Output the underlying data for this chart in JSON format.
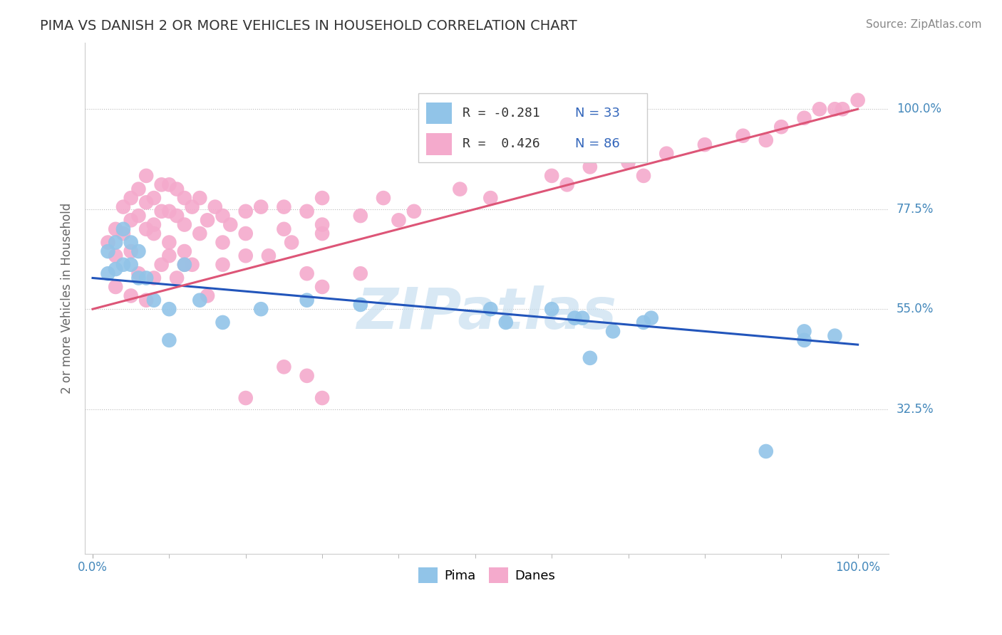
{
  "title": "PIMA VS DANISH 2 OR MORE VEHICLES IN HOUSEHOLD CORRELATION CHART",
  "source": "Source: ZipAtlas.com",
  "ylabel": "2 or more Vehicles in Household",
  "ytick_labels": [
    "100.0%",
    "77.5%",
    "55.0%",
    "32.5%"
  ],
  "ytick_positions": [
    1.0,
    0.775,
    0.55,
    0.325
  ],
  "xlim": [
    0.0,
    1.0
  ],
  "ylim": [
    0.0,
    1.15
  ],
  "pima_color": "#91C4E8",
  "danes_color": "#F4AACC",
  "pima_line_color": "#2255BB",
  "danes_line_color": "#DD5577",
  "watermark": "ZIPatlas",
  "pima_line_start_y": 0.62,
  "pima_line_end_y": 0.47,
  "danes_line_start_y": 0.55,
  "danes_line_end_y": 1.0,
  "pima_x": [
    0.02,
    0.02,
    0.03,
    0.03,
    0.04,
    0.04,
    0.05,
    0.05,
    0.06,
    0.06,
    0.07,
    0.08,
    0.1,
    0.12,
    0.14,
    0.17,
    0.22,
    0.35,
    0.52,
    0.54,
    0.6,
    0.64,
    0.68,
    0.72,
    0.73,
    0.88,
    0.93,
    0.93,
    0.97,
    0.1,
    0.28,
    0.63,
    0.65
  ],
  "pima_y": [
    0.68,
    0.63,
    0.7,
    0.64,
    0.73,
    0.65,
    0.7,
    0.65,
    0.68,
    0.62,
    0.62,
    0.57,
    0.55,
    0.65,
    0.57,
    0.52,
    0.55,
    0.56,
    0.55,
    0.52,
    0.55,
    0.53,
    0.5,
    0.52,
    0.53,
    0.23,
    0.5,
    0.48,
    0.49,
    0.48,
    0.57,
    0.53,
    0.44
  ],
  "danes_x": [
    0.02,
    0.03,
    0.03,
    0.04,
    0.04,
    0.05,
    0.05,
    0.05,
    0.06,
    0.06,
    0.07,
    0.07,
    0.07,
    0.08,
    0.08,
    0.09,
    0.09,
    0.1,
    0.1,
    0.11,
    0.11,
    0.12,
    0.12,
    0.13,
    0.14,
    0.15,
    0.16,
    0.17,
    0.18,
    0.2,
    0.22,
    0.25,
    0.28,
    0.3,
    0.35,
    0.38,
    0.42,
    0.48,
    0.52,
    0.6,
    0.62,
    0.65,
    0.7,
    0.72,
    0.75,
    0.8,
    0.85,
    0.88,
    0.9,
    0.93,
    0.95,
    0.97,
    0.98,
    1.0,
    0.03,
    0.05,
    0.06,
    0.07,
    0.08,
    0.09,
    0.1,
    0.11,
    0.12,
    0.13,
    0.15,
    0.17,
    0.2,
    0.23,
    0.26,
    0.3,
    0.3,
    0.08,
    0.1,
    0.12,
    0.14,
    0.17,
    0.2,
    0.25,
    0.3,
    0.4,
    0.28,
    0.35,
    0.25,
    0.3,
    0.2,
    0.28
  ],
  "danes_y": [
    0.7,
    0.73,
    0.67,
    0.78,
    0.72,
    0.8,
    0.75,
    0.68,
    0.82,
    0.76,
    0.85,
    0.79,
    0.73,
    0.8,
    0.74,
    0.83,
    0.77,
    0.83,
    0.77,
    0.82,
    0.76,
    0.8,
    0.74,
    0.78,
    0.8,
    0.75,
    0.78,
    0.76,
    0.74,
    0.77,
    0.78,
    0.78,
    0.77,
    0.8,
    0.76,
    0.8,
    0.77,
    0.82,
    0.8,
    0.85,
    0.83,
    0.87,
    0.88,
    0.85,
    0.9,
    0.92,
    0.94,
    0.93,
    0.96,
    0.98,
    1.0,
    1.0,
    1.0,
    1.02,
    0.6,
    0.58,
    0.63,
    0.57,
    0.62,
    0.65,
    0.67,
    0.62,
    0.65,
    0.65,
    0.58,
    0.65,
    0.67,
    0.67,
    0.7,
    0.74,
    0.6,
    0.72,
    0.7,
    0.68,
    0.72,
    0.7,
    0.72,
    0.73,
    0.72,
    0.75,
    0.63,
    0.63,
    0.42,
    0.35,
    0.35,
    0.4
  ]
}
